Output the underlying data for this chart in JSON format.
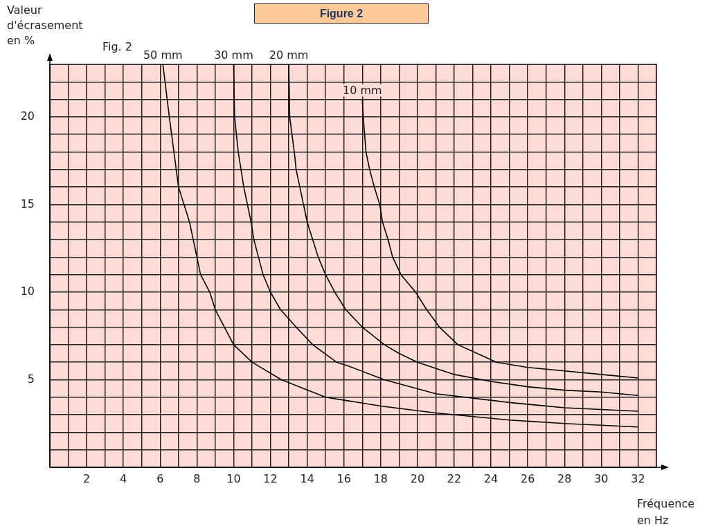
{
  "chart_data": {
    "type": "line",
    "title": "Figure 2",
    "xlabel": "Fréquence en Hz",
    "ylabel": "Valeur d'écrasement en %",
    "annotations": [
      "Fig. 2"
    ],
    "xlim": [
      0,
      33
    ],
    "ylim": [
      0,
      23
    ],
    "grid": true,
    "xticks": [
      {
        "value": 1,
        "label": null
      },
      2,
      {
        "value": 3,
        "label": null
      },
      4,
      {
        "value": 5,
        "label": null
      },
      6,
      {
        "value": 7,
        "label": null
      },
      8,
      {
        "value": 9,
        "label": null
      },
      10,
      {
        "value": 11,
        "label": null
      },
      12,
      {
        "value": 13,
        "label": null
      },
      14,
      {
        "value": 15,
        "label": null
      },
      16,
      {
        "value": 17,
        "label": null
      },
      18,
      {
        "value": 19,
        "label": null
      },
      20,
      {
        "value": 21,
        "label": null
      },
      22,
      {
        "value": 23,
        "label": null
      },
      24,
      {
        "value": 25,
        "label": null
      },
      26,
      {
        "value": 27,
        "label": null
      },
      28,
      {
        "value": 29,
        "label": null
      },
      30,
      {
        "value": 31,
        "label": null
      },
      32
    ],
    "yticks": [
      {
        "value": 1,
        "label": null
      },
      {
        "value": 2,
        "label": null
      },
      {
        "value": 3,
        "label": null
      },
      {
        "value": 4,
        "label": null
      },
      5,
      {
        "value": 6,
        "label": null
      },
      {
        "value": 7,
        "label": null
      },
      {
        "value": 8,
        "label": null
      },
      {
        "value": 9,
        "label": null
      },
      10,
      {
        "value": 11,
        "label": null
      },
      {
        "value": 12,
        "label": null
      },
      {
        "value": 13,
        "label": null
      },
      {
        "value": 14,
        "label": null
      },
      15,
      {
        "value": 16,
        "label": null
      },
      {
        "value": 17,
        "label": null
      },
      {
        "value": 18,
        "label": null
      },
      {
        "value": 19,
        "label": null
      },
      20,
      {
        "value": 21,
        "label": null
      },
      {
        "value": 22,
        "label": null
      }
    ],
    "series": [
      {
        "name": "50 mm",
        "color": "#000000",
        "x": [
          6.15,
          6.5,
          7.0,
          7.3,
          7.6,
          7.8,
          8.0,
          8.2,
          8.7,
          9.0,
          9.5,
          10.0,
          11.0,
          12.6,
          15.0,
          16.2,
          18.0,
          21.0,
          25.0,
          28.0,
          32.0
        ],
        "values": [
          23,
          20,
          16,
          15,
          14,
          13,
          12,
          11,
          10,
          9,
          8,
          7,
          6,
          5,
          4,
          3.8,
          3.5,
          3.1,
          2.7,
          2.5,
          2.3
        ]
      },
      {
        "name": "30 mm",
        "color": "#000000",
        "x": [
          10.0,
          10.05,
          10.25,
          10.4,
          10.55,
          10.75,
          10.95,
          11.1,
          11.35,
          11.6,
          12.0,
          12.55,
          13.4,
          14.3,
          15.6,
          16.2,
          18.2,
          21.0,
          25.0,
          28.0,
          32.0
        ],
        "values": [
          23,
          20,
          18,
          17,
          16,
          15,
          14,
          13,
          12,
          11,
          10,
          9,
          8,
          7,
          6,
          5.8,
          5.0,
          4.2,
          3.7,
          3.4,
          3.2
        ]
      },
      {
        "name": "20 mm",
        "color": "#000000",
        "x": [
          13.0,
          13.05,
          13.3,
          13.4,
          13.6,
          13.8,
          14.0,
          14.3,
          14.6,
          15.0,
          15.5,
          16.1,
          17.0,
          18.2,
          19.0,
          20.0,
          22.0,
          24.0,
          26.0,
          28.0,
          30.0,
          32.0
        ],
        "values": [
          23,
          20,
          18,
          17,
          16,
          15,
          14,
          13,
          12,
          11,
          10,
          9,
          8,
          7,
          6.5,
          6.0,
          5.3,
          4.9,
          4.6,
          4.4,
          4.3,
          4.1
        ]
      },
      {
        "name": "10 mm",
        "color": "#000000",
        "x": [
          17.0,
          17.05,
          17.2,
          17.4,
          17.65,
          17.95,
          18.1,
          18.4,
          18.65,
          19.1,
          19.9,
          20.5,
          21.2,
          22.2,
          24.3,
          26.0,
          28.0,
          30.0,
          32.0
        ],
        "values": [
          21,
          20,
          18,
          17,
          16,
          15,
          14,
          13,
          12,
          11,
          10,
          9,
          8,
          7,
          6,
          5.7,
          5.5,
          5.3,
          5.1
        ]
      }
    ]
  }
}
